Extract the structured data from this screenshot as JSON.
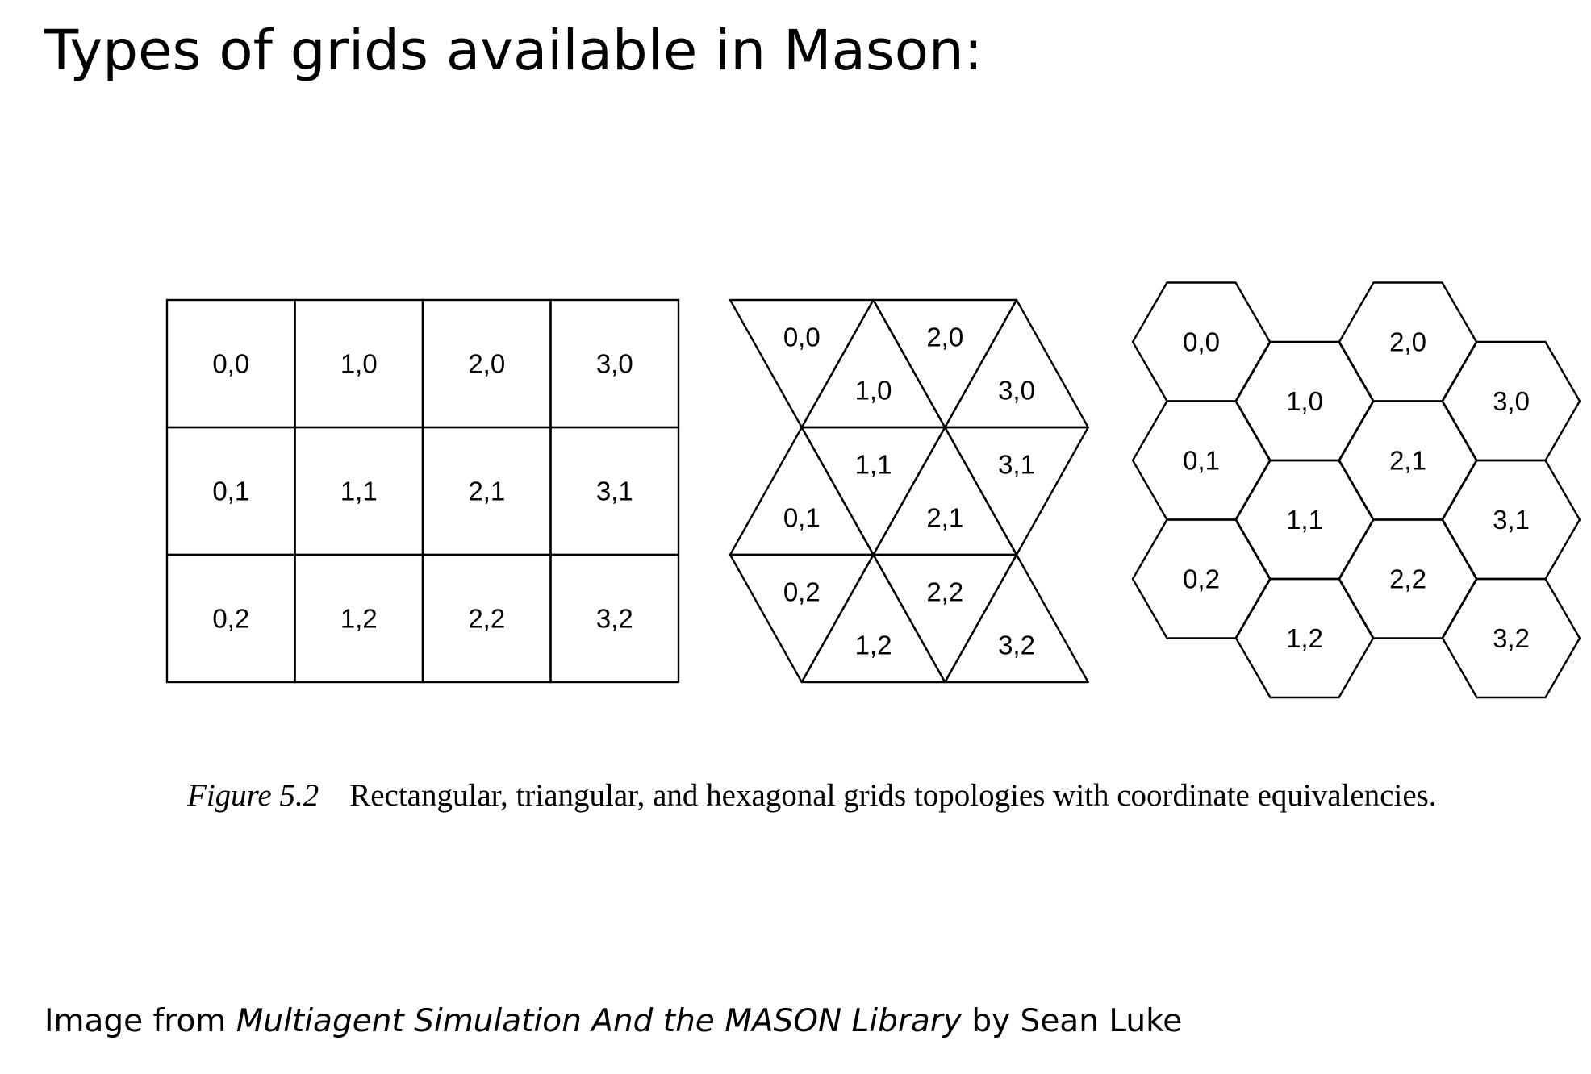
{
  "title": "Types of grids available in Mason:",
  "figure": {
    "label": "Figure 5.2",
    "caption": "Rectangular, triangular, and hexagonal grids topologies with coordinate equivalencies."
  },
  "grids": {
    "rectangular": {
      "columns": 4,
      "rows": 3,
      "cells": [
        "0,0",
        "1,0",
        "2,0",
        "3,0",
        "0,1",
        "1,1",
        "2,1",
        "3,1",
        "0,2",
        "1,2",
        "2,2",
        "3,2"
      ]
    },
    "triangular": {
      "columns": 4,
      "rows": 3,
      "cells": [
        "0,0",
        "1,0",
        "2,0",
        "3,0",
        "0,1",
        "1,1",
        "2,1",
        "3,1",
        "0,2",
        "1,2",
        "2,2",
        "3,2"
      ]
    },
    "hexagonal": {
      "columns": 4,
      "rows": 3,
      "cells": [
        "0,0",
        "1,0",
        "2,0",
        "3,0",
        "0,1",
        "1,1",
        "2,1",
        "3,1",
        "0,2",
        "1,2",
        "2,2",
        "3,2"
      ]
    }
  },
  "credit": {
    "prefix": "Image from",
    "book": "Multiagent Simulation And the MASON Library",
    "suffix": "by Sean Luke"
  },
  "colors": {
    "text": "#000000",
    "stroke": "#000000",
    "background": "#ffffff"
  }
}
